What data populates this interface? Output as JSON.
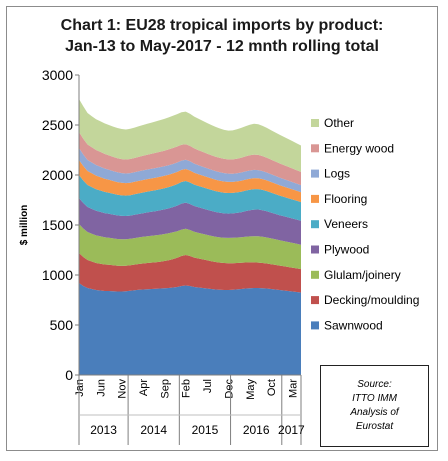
{
  "chart_data": {
    "type": "area",
    "stacked": true,
    "title_line1": "Chart 1: EU28 tropical imports by product:",
    "title_line2": "Jan-13 to May-2017 - 12 mnth rolling total",
    "ylabel": "$ million",
    "ylim": [
      0,
      3000
    ],
    "yticks": [
      0,
      500,
      1000,
      1500,
      2000,
      2500,
      3000
    ],
    "x_month_labels": [
      {
        "index": 0,
        "label": "Jan"
      },
      {
        "index": 5,
        "label": "Jun"
      },
      {
        "index": 10,
        "label": "Nov"
      },
      {
        "index": 15,
        "label": "Apr"
      },
      {
        "index": 20,
        "label": "Sep"
      },
      {
        "index": 25,
        "label": "Feb"
      },
      {
        "index": 30,
        "label": "Jul"
      },
      {
        "index": 35,
        "label": "Dec"
      },
      {
        "index": 40,
        "label": "May"
      },
      {
        "index": 45,
        "label": "Oct"
      },
      {
        "index": 50,
        "label": "Mar"
      }
    ],
    "year_groups": [
      {
        "label": "2013",
        "start": 0,
        "end": 11
      },
      {
        "label": "2014",
        "start": 12,
        "end": 23
      },
      {
        "label": "2015",
        "start": 24,
        "end": 35
      },
      {
        "label": "2016",
        "start": 36,
        "end": 47
      },
      {
        "label": "2017",
        "start": 48,
        "end": 52
      }
    ],
    "series": [
      {
        "name": "Sawnwood",
        "color": "#4a7ebb",
        "values": [
          920,
          890,
          870,
          860,
          850,
          845,
          840,
          840,
          838,
          835,
          835,
          838,
          842,
          848,
          852,
          855,
          858,
          860,
          862,
          865,
          868,
          870,
          875,
          880,
          890,
          895,
          890,
          880,
          875,
          870,
          865,
          860,
          855,
          852,
          850,
          850,
          852,
          856,
          860,
          865,
          868,
          870,
          870,
          868,
          865,
          860,
          855,
          850,
          845,
          840,
          835,
          830,
          825
        ]
      },
      {
        "name": "Decking/moulding",
        "color": "#c0504d",
        "values": [
          300,
          290,
          280,
          275,
          270,
          268,
          265,
          262,
          260,
          258,
          256,
          255,
          255,
          256,
          258,
          260,
          262,
          264,
          266,
          268,
          272,
          278,
          284,
          292,
          300,
          305,
          300,
          294,
          290,
          286,
          282,
          278,
          275,
          272,
          270,
          268,
          266,
          264,
          262,
          260,
          258,
          256,
          254,
          252,
          250,
          248,
          246,
          244,
          242,
          240,
          238,
          236,
          234
        ]
      },
      {
        "name": "Glulam/joinery",
        "color": "#9bbb59",
        "values": [
          290,
          285,
          280,
          278,
          276,
          274,
          272,
          270,
          268,
          267,
          266,
          265,
          265,
          265,
          266,
          267,
          268,
          268,
          269,
          270,
          270,
          270,
          268,
          266,
          264,
          262,
          260,
          258,
          256,
          255,
          254,
          253,
          252,
          252,
          252,
          253,
          254,
          255,
          256,
          258,
          260,
          262,
          263,
          262,
          260,
          258,
          256,
          254,
          252,
          250,
          248,
          246,
          244
        ]
      },
      {
        "name": "Plywood",
        "color": "#8064a2",
        "values": [
          260,
          255,
          250,
          248,
          246,
          244,
          242,
          240,
          238,
          236,
          234,
          232,
          232,
          233,
          234,
          236,
          238,
          240,
          242,
          244,
          246,
          248,
          252,
          256,
          260,
          262,
          260,
          258,
          256,
          254,
          252,
          250,
          248,
          246,
          244,
          243,
          244,
          246,
          250,
          256,
          262,
          266,
          268,
          266,
          262,
          258,
          254,
          250,
          248,
          246,
          244,
          242,
          240
        ]
      },
      {
        "name": "Veneers",
        "color": "#4bacc6",
        "values": [
          230,
          225,
          220,
          218,
          216,
          214,
          212,
          210,
          208,
          206,
          205,
          204,
          204,
          205,
          206,
          207,
          208,
          209,
          210,
          211,
          212,
          213,
          214,
          215,
          216,
          216,
          215,
          214,
          213,
          212,
          211,
          210,
          209,
          208,
          207,
          206,
          205,
          205,
          205,
          205,
          205,
          205,
          204,
          203,
          202,
          200,
          198,
          196,
          194,
          192,
          190,
          188,
          186
        ]
      },
      {
        "name": "Flooring",
        "color": "#f79646",
        "values": [
          150,
          145,
          140,
          138,
          136,
          134,
          132,
          130,
          128,
          127,
          126,
          125,
          125,
          125,
          125,
          125,
          125,
          125,
          125,
          125,
          124,
          124,
          123,
          122,
          121,
          120,
          120,
          119,
          118,
          117,
          116,
          115,
          114,
          113,
          112,
          111,
          110,
          110,
          110,
          110,
          110,
          110,
          109,
          108,
          107,
          106,
          105,
          104,
          103,
          102,
          101,
          100,
          99
        ]
      },
      {
        "name": "Logs",
        "color": "#8fa9d6",
        "values": [
          120,
          115,
          110,
          108,
          106,
          104,
          102,
          100,
          99,
          98,
          97,
          96,
          96,
          96,
          96,
          96,
          96,
          96,
          96,
          96,
          95,
          95,
          94,
          94,
          93,
          92,
          92,
          91,
          90,
          89,
          88,
          87,
          86,
          85,
          84,
          83,
          82,
          82,
          82,
          82,
          82,
          82,
          81,
          80,
          79,
          78,
          77,
          76,
          75,
          74,
          73,
          72,
          71
        ]
      },
      {
        "name": "Energy wood",
        "color": "#d99694",
        "values": [
          160,
          158,
          155,
          152,
          150,
          148,
          146,
          144,
          142,
          141,
          140,
          140,
          141,
          142,
          144,
          146,
          148,
          150,
          152,
          154,
          156,
          158,
          160,
          160,
          158,
          156,
          154,
          152,
          150,
          148,
          146,
          145,
          144,
          143,
          142,
          142,
          143,
          145,
          148,
          150,
          152,
          153,
          152,
          150,
          148,
          146,
          144,
          142,
          140,
          138,
          136,
          134,
          132
        ]
      },
      {
        "name": "Other",
        "color": "#c3d69b",
        "values": [
          330,
          325,
          315,
          310,
          308,
          306,
          305,
          304,
          303,
          302,
          301,
          300,
          302,
          304,
          306,
          308,
          310,
          312,
          314,
          316,
          318,
          320,
          322,
          324,
          325,
          326,
          322,
          318,
          314,
          310,
          306,
          302,
          298,
          294,
          290,
          288,
          290,
          294,
          298,
          302,
          306,
          308,
          306,
          302,
          298,
          294,
          290,
          286,
          282,
          278,
          274,
          268,
          264
        ]
      }
    ]
  },
  "source": {
    "line1": "Source:",
    "line2": "ITTO IMM",
    "line3": "Analysis of",
    "line4": "Eurostat"
  }
}
